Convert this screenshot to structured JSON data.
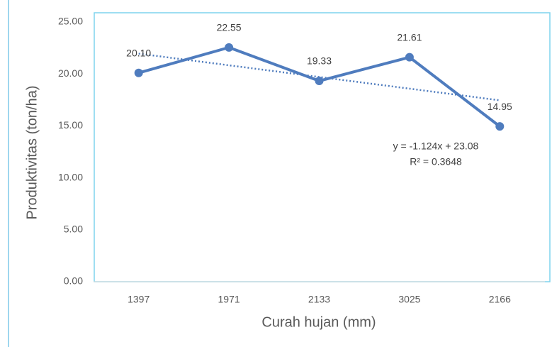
{
  "chart_data": {
    "type": "line",
    "x_label": "Curah hujan (mm)",
    "y_label": "Produktivitas (ton/ha)",
    "categories": [
      "1397",
      "1971",
      "2133",
      "3025",
      "2166"
    ],
    "series": [
      {
        "color": "#4f7cbe",
        "values": [
          20.1,
          22.55,
          19.33,
          21.61,
          14.95
        ],
        "value_labels": [
          "20.10",
          "22.55",
          "19.33",
          "21.61",
          "14.95"
        ]
      }
    ],
    "trendline": {
      "slope": -1.124,
      "intercept": 23.08,
      "equation": "y = -1.124x + 23.08",
      "r2": 0.3648,
      "r2_label": "R² = 0.3648"
    },
    "ylim": [
      0,
      25
    ],
    "yticks": [
      {
        "value": 0,
        "label": "0.00"
      },
      {
        "value": 5,
        "label": "5.00"
      },
      {
        "value": 10,
        "label": "10.00"
      },
      {
        "value": 15,
        "label": "15.00"
      },
      {
        "value": 20,
        "label": "20.00"
      },
      {
        "value": 25,
        "label": "25.00"
      }
    ],
    "grid": false
  }
}
